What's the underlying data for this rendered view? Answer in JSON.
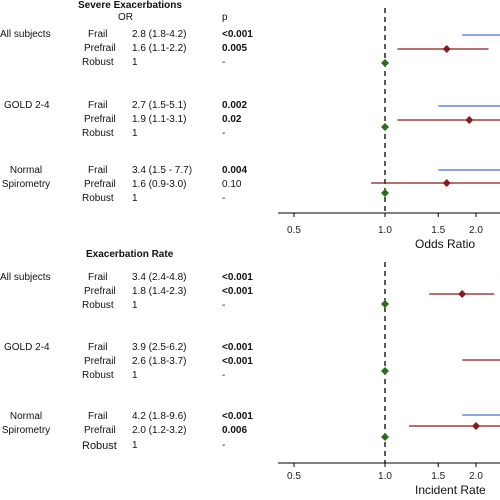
{
  "chart_data": [
    {
      "type": "forest",
      "title": "Severe Exacerbations",
      "col_headers": {
        "estimate": "OR",
        "p": "p"
      },
      "xlabel": "Odds Ratio",
      "x_scale": "log",
      "xlim": [
        0.45,
        2.8
      ],
      "ticks": [
        "0.5",
        "1.0",
        "1.5",
        "2.0"
      ],
      "reference_line": 1.0,
      "groups": [
        {
          "name": "All subjects",
          "rows": [
            {
              "label": "Frail",
              "text": "2.8 (1.8-4.2)",
              "est": 2.8,
              "lo": 1.8,
              "hi": 4.2,
              "p": "<0.001",
              "p_bold": true,
              "color": "#4a6fd1"
            },
            {
              "label": "Prefrail",
              "text": "1.6 (1.1-2.2)",
              "est": 1.6,
              "lo": 1.1,
              "hi": 2.2,
              "p": "0.005",
              "p_bold": true,
              "color": "#8b1a1a"
            },
            {
              "label": "Robust",
              "text": "1",
              "est": 1.0,
              "p": "-",
              "p_bold": false,
              "color": "#2e6b1f"
            }
          ]
        },
        {
          "name": "GOLD 2-4",
          "rows": [
            {
              "label": "Frail",
              "text": "2.7 (1.5-5.1)",
              "est": 2.7,
              "lo": 1.5,
              "hi": 5.1,
              "p": "0.002",
              "p_bold": true,
              "color": "#4a6fd1"
            },
            {
              "label": "Prefrail",
              "text": "1.9 (1.1-3.1)",
              "est": 1.9,
              "lo": 1.1,
              "hi": 3.1,
              "p": "0.02",
              "p_bold": true,
              "color": "#8b1a1a"
            },
            {
              "label": "Robust",
              "text": "1",
              "est": 1.0,
              "p": "-",
              "p_bold": false,
              "color": "#2e6b1f"
            }
          ]
        },
        {
          "name": "Normal Spirometry",
          "name_lines": [
            "Normal",
            "Spirometry"
          ],
          "rows": [
            {
              "label": "Frail",
              "text": "3.4 (1.5 - 7.7)",
              "est": 3.4,
              "lo": 1.5,
              "hi": 7.7,
              "p": "0.004",
              "p_bold": true,
              "color": "#4a6fd1"
            },
            {
              "label": "Prefrail",
              "text": "1.6 (0.9-3.0)",
              "est": 1.6,
              "lo": 0.9,
              "hi": 3.0,
              "p": "0.10",
              "p_bold": false,
              "color": "#8b1a1a"
            },
            {
              "label": "Robust",
              "text": "1",
              "est": 1.0,
              "p": "-",
              "p_bold": false,
              "color": "#2e6b1f"
            }
          ]
        }
      ]
    },
    {
      "type": "forest",
      "title": "Exacerbation Rate",
      "xlabel": "Incident Rate",
      "x_scale": "log",
      "xlim": [
        0.45,
        2.8
      ],
      "ticks": [
        "0.5",
        "1.0",
        "1.5",
        "2.0"
      ],
      "reference_line": 1.0,
      "groups": [
        {
          "name": "All subjects",
          "rows": [
            {
              "label": "Frail",
              "text": "3.4 (2.4-4.8)",
              "est": 3.4,
              "lo": 2.4,
              "hi": 4.8,
              "p": "<0.001",
              "p_bold": true,
              "color": "#4a6fd1"
            },
            {
              "label": "Prefrail",
              "text": "1.8 (1.4-2.3)",
              "est": 1.8,
              "lo": 1.4,
              "hi": 2.3,
              "p": "<0.001",
              "p_bold": true,
              "color": "#8b1a1a"
            },
            {
              "label": "Robust",
              "text": "1",
              "est": 1.0,
              "p": "-",
              "p_bold": false,
              "color": "#2e6b1f"
            }
          ]
        },
        {
          "name": "GOLD 2-4",
          "rows": [
            {
              "label": "Frail",
              "text": "3.9 (2.5-6.2)",
              "est": 3.9,
              "lo": 2.5,
              "hi": 6.2,
              "p": "<0.001",
              "p_bold": true,
              "color": "#4a6fd1"
            },
            {
              "label": "Prefrail",
              "text": "2.6 (1.8-3.7)",
              "est": 2.6,
              "lo": 1.8,
              "hi": 3.7,
              "p": "<0.001",
              "p_bold": true,
              "color": "#8b1a1a"
            },
            {
              "label": "Robust",
              "text": "1",
              "est": 1.0,
              "p": "-",
              "p_bold": false,
              "color": "#2e6b1f"
            }
          ]
        },
        {
          "name": "Normal Spirometry",
          "name_lines": [
            "Normal",
            "Spirometry"
          ],
          "rows": [
            {
              "label": "Frail",
              "text": "4.2 (1.8-9.6)",
              "est": 4.2,
              "lo": 1.8,
              "hi": 9.6,
              "p": "<0.001",
              "p_bold": true,
              "color": "#4a6fd1"
            },
            {
              "label": "Prefrail",
              "text": "2.0 (1.2-3.2)",
              "est": 2.0,
              "lo": 1.2,
              "hi": 3.2,
              "p": "0.006",
              "p_bold": true,
              "color": "#8b1a1a"
            },
            {
              "label": "Robust",
              "text": "1",
              "est": 1.0,
              "p": "-",
              "p_bold": false,
              "color": "#2e6b1f"
            }
          ]
        }
      ]
    }
  ]
}
